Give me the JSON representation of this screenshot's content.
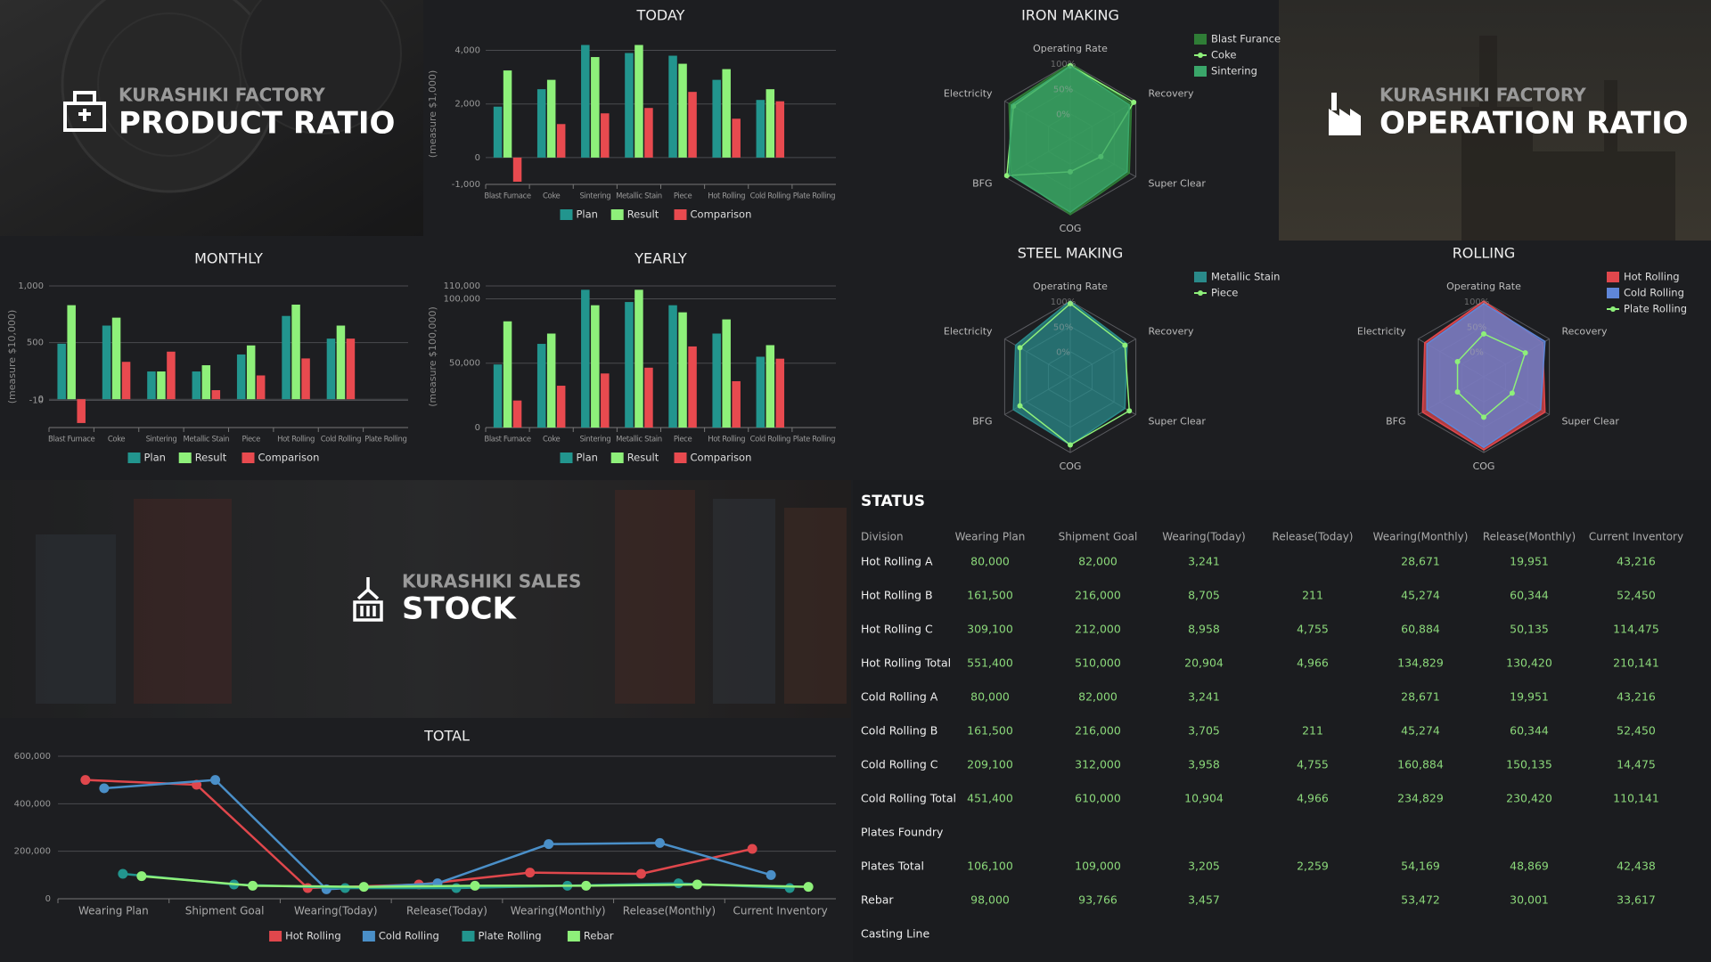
{
  "panels": [
    {
      "subtitle": "KURASHIKI FACTORY",
      "title": "PRODUCT RATIO"
    },
    {
      "subtitle": "KURASHIKI FACTORY",
      "title": "OPERATION RATIO"
    },
    {
      "subtitle": "KURASHIKI SALES",
      "title": "STOCK"
    }
  ],
  "chart_data": [
    {
      "type": "bar",
      "title": "TODAY",
      "y_label": "(measure $1,000)",
      "categories": [
        "Blast Furnace",
        "Coke",
        "Sintering",
        "Metallic Stain",
        "Piece",
        "Hot Rolling",
        "Cold Rolling",
        "Plate Rolling"
      ],
      "series": [
        {
          "name": "Plan",
          "color": "#22958e",
          "values": [
            1900,
            2550,
            4200,
            3900,
            3800,
            2900,
            2150,
            null
          ]
        },
        {
          "name": "Result",
          "color": "#8ef07a",
          "values": [
            3250,
            2900,
            3750,
            4200,
            3500,
            3300,
            2550,
            null
          ]
        },
        {
          "name": "Comparison",
          "color": "#e84a4f",
          "values": [
            -900,
            1250,
            1650,
            1850,
            2450,
            1450,
            2100,
            null
          ]
        }
      ],
      "ylim": [
        -1000,
        4250
      ],
      "yticks": [
        {
          "value": -1000,
          "label": "-1,000"
        },
        0,
        {
          "value": 2000,
          "label": "2,000"
        },
        {
          "value": 4000,
          "label": "4,000"
        }
      ],
      "grid": true,
      "legend": "bottom"
    },
    {
      "type": "bar",
      "title": "MONTHLY",
      "y_label": "(measure $10,000)",
      "categories": [
        "Blast Furnace",
        "Coke",
        "Sintering",
        "Metallic Stain",
        "Piece",
        "Hot Rolling",
        "Cold Rolling",
        "Plate Rolling"
      ],
      "series": [
        {
          "name": "Plan",
          "color": "#22958e",
          "values": [
            490,
            650,
            245,
            245,
            395,
            735,
            535,
            null
          ]
        },
        {
          "name": "Result",
          "color": "#8ef07a",
          "values": [
            830,
            720,
            245,
            300,
            475,
            835,
            650,
            null
          ]
        },
        {
          "name": "Comparison",
          "color": "#e84a4f",
          "values": [
            -210,
            330,
            420,
            80,
            210,
            360,
            535,
            null
          ]
        }
      ],
      "ylim": [
        -250,
        1000
      ],
      "yticks": [
        -10,
        0,
        500,
        {
          "value": 1000,
          "label": "1,000"
        }
      ],
      "grid": true,
      "legend": "bottom"
    },
    {
      "type": "bar",
      "title": "YEARLY",
      "y_label": "(measure $100,000)",
      "categories": [
        "Blast Furnace",
        "Coke",
        "Sintering",
        "Metallic Stain",
        "Piece",
        "Hot Rolling",
        "Cold Rolling",
        "Plate Rolling"
      ],
      "series": [
        {
          "name": "Plan",
          "color": "#22958e",
          "values": [
            49000,
            65000,
            107000,
            97500,
            95000,
            73000,
            55000,
            null
          ]
        },
        {
          "name": "Result",
          "color": "#8ef07a",
          "values": [
            82500,
            73000,
            95000,
            107000,
            89500,
            84000,
            64000,
            null
          ]
        },
        {
          "name": "Comparison",
          "color": "#e84a4f",
          "values": [
            21000,
            32500,
            42000,
            46500,
            63000,
            36000,
            53500,
            null
          ]
        }
      ],
      "ylim": [
        0,
        110000
      ],
      "yticks": [
        0,
        {
          "value": 50000,
          "label": "50,000"
        },
        {
          "value": 100000,
          "label": "100,000"
        },
        {
          "value": 110000,
          "label": "110,000"
        }
      ],
      "grid": true,
      "legend": "bottom"
    },
    {
      "type": "radar",
      "title": "IRON MAKING",
      "axes": [
        "Operating Rate",
        "Recovery",
        "Super Clear",
        "COG",
        "BFG",
        "Electricity"
      ],
      "rlim": [
        -50,
        100
      ],
      "rticks": [
        {
          "value": 0,
          "label": "0%"
        },
        {
          "value": 50,
          "label": "50%"
        },
        {
          "value": 100,
          "label": "100%"
        }
      ],
      "series": [
        {
          "name": "Blast Furance",
          "color": "#2f7d36",
          "style": "area",
          "values": [
            100,
            90,
            85,
            100,
            85,
            90
          ]
        },
        {
          "name": "Coke",
          "color": "#8ef07a",
          "style": "line",
          "values": [
            95,
            95,
            20,
            15,
            95,
            80
          ]
        },
        {
          "name": "Sintering",
          "color": "#3aa66a",
          "style": "area",
          "values": [
            95,
            85,
            80,
            95,
            90,
            85
          ]
        }
      ],
      "legend": "top-right"
    },
    {
      "type": "radar",
      "title": "STEEL MAKING",
      "axes": [
        "Operating Rate",
        "Recovery",
        "Super Clear",
        "COG",
        "BFG",
        "Electricity"
      ],
      "rlim": [
        -50,
        100
      ],
      "rticks": [
        {
          "value": 0,
          "label": "0%"
        },
        {
          "value": 50,
          "label": "50%"
        },
        {
          "value": 100,
          "label": "100%"
        }
      ],
      "series": [
        {
          "name": "Metallic Stain",
          "color": "#2a8a8a",
          "style": "area",
          "values": [
            100,
            80,
            75,
            85,
            80,
            75
          ]
        },
        {
          "name": "Piece",
          "color": "#8ef07a",
          "style": "line",
          "values": [
            95,
            75,
            85,
            85,
            65,
            65
          ]
        }
      ],
      "legend": "top-right"
    },
    {
      "type": "radar",
      "title": "ROLLING",
      "axes": [
        "Operating Rate",
        "Recovery",
        "Super Clear",
        "COG",
        "BFG",
        "Electricity"
      ],
      "rlim": [
        -50,
        100
      ],
      "rticks": [
        {
          "value": 0,
          "label": "0%"
        },
        {
          "value": 50,
          "label": "50%"
        },
        {
          "value": 100,
          "label": "100%"
        }
      ],
      "series": [
        {
          "name": "Hot Rolling",
          "color": "#e0474c",
          "style": "area",
          "values": [
            100,
            85,
            90,
            95,
            90,
            85
          ]
        },
        {
          "name": "Cold Rolling",
          "color": "#5f86d8",
          "style": "area",
          "values": [
            95,
            90,
            80,
            90,
            80,
            80
          ]
        },
        {
          "name": "Plate Rolling",
          "color": "#8ef07a",
          "style": "line",
          "values": [
            35,
            45,
            15,
            30,
            10,
            10
          ]
        }
      ],
      "legend": "top-right"
    },
    {
      "type": "line",
      "title": "TOTAL",
      "categories": [
        "Wearing Plan",
        "Shipment Goal",
        "Wearing(Today)",
        "Release(Today)",
        "Wearing(Monthly)",
        "Release(Monthly)",
        "Current Inventory"
      ],
      "series": [
        {
          "name": "Hot Rolling",
          "color": "#e0474c",
          "values": [
            500000,
            480000,
            45000,
            60000,
            110000,
            105000,
            210000
          ]
        },
        {
          "name": "Cold Rolling",
          "color": "#4a8fc8",
          "values": [
            465000,
            500000,
            40000,
            65000,
            230000,
            235000,
            100000
          ]
        },
        {
          "name": "Plate Rolling",
          "color": "#22958e",
          "values": [
            105000,
            60000,
            45000,
            45000,
            55000,
            65000,
            45000
          ]
        },
        {
          "name": "Rebar",
          "color": "#8ef07a",
          "values": [
            95000,
            55000,
            50000,
            55000,
            55000,
            60000,
            50000
          ]
        }
      ],
      "ylim": [
        0,
        600000
      ],
      "yticks": [
        0,
        {
          "value": 200000,
          "label": "200,000"
        },
        {
          "value": 400000,
          "label": "400,000"
        },
        {
          "value": 600000,
          "label": "600,000"
        }
      ],
      "grid": true,
      "legend": "bottom"
    }
  ],
  "status": {
    "title": "STATUS",
    "columns": [
      "Division",
      "Wearing Plan",
      "Shipment Goal",
      "Wearing(Today)",
      "Release(Today)",
      "Wearing(Monthly)",
      "Release(Monthly)",
      "Current Inventory"
    ],
    "rows": [
      [
        "Hot Rolling A",
        "80,000",
        "82,000",
        "3,241",
        null,
        "28,671",
        "19,951",
        "43,216"
      ],
      [
        "Hot Rolling B",
        "161,500",
        "216,000",
        "8,705",
        "211",
        "45,274",
        "60,344",
        "52,450"
      ],
      [
        "Hot Rolling C",
        "309,100",
        "212,000",
        "8,958",
        "4,755",
        "60,884",
        "50,135",
        "114,475"
      ],
      [
        "Hot Rolling Total",
        "551,400",
        "510,000",
        "20,904",
        "4,966",
        "134,829",
        "130,420",
        "210,141"
      ],
      [
        "Cold Rolling A",
        "80,000",
        "82,000",
        "3,241",
        null,
        "28,671",
        "19,951",
        "43,216"
      ],
      [
        "Cold Rolling B",
        "161,500",
        "216,000",
        "3,705",
        "211",
        "45,274",
        "60,344",
        "52,450"
      ],
      [
        "Cold Rolling C",
        "209,100",
        "312,000",
        "3,958",
        "4,755",
        "160,884",
        "150,135",
        "14,475"
      ],
      [
        "Cold Rolling Total",
        "451,400",
        "610,000",
        "10,904",
        "4,966",
        "234,829",
        "230,420",
        "110,141"
      ],
      [
        "Plates Foundry",
        null,
        null,
        null,
        null,
        null,
        null,
        null
      ],
      [
        "Plates Total",
        "106,100",
        "109,000",
        "3,205",
        "2,259",
        "54,169",
        "48,869",
        "42,438"
      ],
      [
        "Rebar",
        "98,000",
        "93,766",
        "3,457",
        null,
        "53,472",
        "30,001",
        "33,617"
      ],
      [
        "Casting Line",
        null,
        null,
        null,
        null,
        null,
        null,
        null
      ]
    ]
  }
}
